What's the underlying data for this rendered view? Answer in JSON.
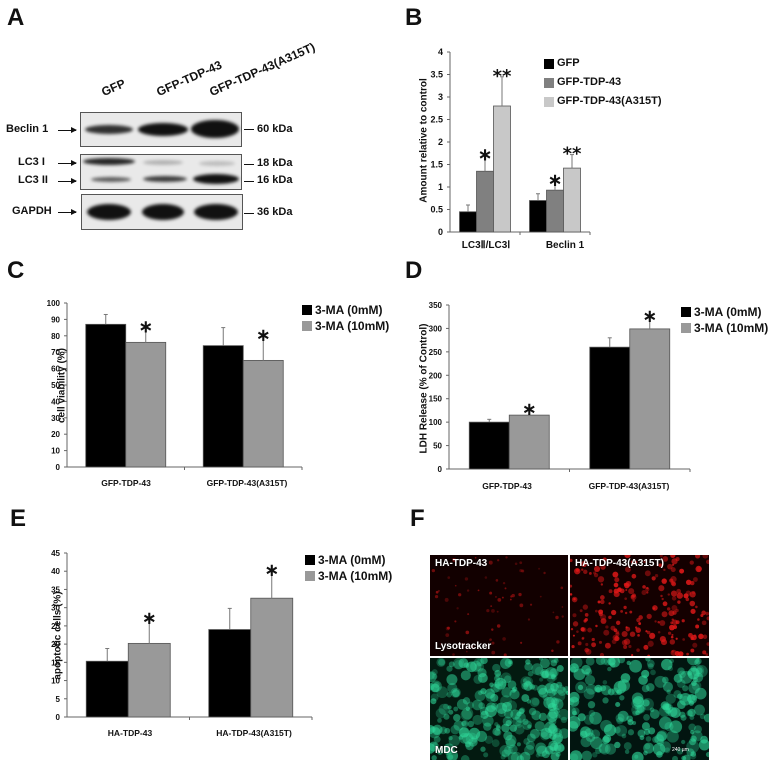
{
  "figure": {
    "panels": [
      "A",
      "B",
      "C",
      "D",
      "E",
      "F"
    ]
  },
  "panel_a": {
    "label": "A",
    "lanes": [
      "GFP",
      "GFP-TDP-43",
      "GFP-TDP-43(A315T)"
    ],
    "rows": [
      {
        "name": "Beclin 1",
        "mw": "60 kDa"
      },
      {
        "name": "LC3 I",
        "mw": "18 kDa"
      },
      {
        "name": "LC3 II",
        "mw": "16 kDa"
      },
      {
        "name": "GAPDH",
        "mw": "36 kDa"
      }
    ],
    "arrow": "→"
  },
  "panel_b": {
    "label": "B"
  },
  "panel_c": {
    "label": "C"
  },
  "panel_d": {
    "label": "D"
  },
  "panel_e": {
    "label": "E"
  },
  "panel_f": {
    "label": "F",
    "col_labels": [
      "HA-TDP-43",
      "HA-TDP-43(A315T)"
    ],
    "row_labels": [
      "Lysotracker",
      "MDC"
    ],
    "scale_bar": "240 µm",
    "colors": {
      "lysotracker": "#e01818",
      "mdc": "#2fd89a"
    }
  },
  "colors": {
    "black_bar": "#000000",
    "dark_gray_bar": "#808080",
    "light_gray_bar": "#c8c8c8",
    "treated_bar": "#999999"
  },
  "chart_data": [
    {
      "panel": "B",
      "type": "bar",
      "title": "",
      "xlabel": "",
      "ylabel": "Amount relative to control",
      "categories": [
        "LC3Ⅱ/LC3Ⅰ",
        "Beclin 1"
      ],
      "series": [
        {
          "name": "GFP",
          "color": "#000000",
          "values": [
            0.45,
            0.7
          ],
          "errors": [
            0.15,
            0.15
          ],
          "sig": [
            "",
            ""
          ]
        },
        {
          "name": "GFP-TDP-43",
          "color": "#808080",
          "values": [
            1.35,
            0.93
          ],
          "errors": [
            0.35,
            0.2
          ],
          "sig": [
            "*",
            "*"
          ]
        },
        {
          "name": "GFP-TDP-43(A315T)",
          "color": "#c8c8c8",
          "values": [
            2.8,
            1.42
          ],
          "errors": [
            0.65,
            0.3
          ],
          "sig": [
            "**",
            "**"
          ]
        }
      ],
      "yticks": [
        "0",
        "0.5",
        "1",
        "1.5",
        "2",
        "2.5",
        "3",
        "3.5",
        "4"
      ],
      "ylim": [
        0,
        4
      ],
      "grid": false,
      "legend_position": "upper right"
    },
    {
      "panel": "C",
      "type": "bar",
      "title": "",
      "xlabel": "",
      "ylabel": "cell viability (%)",
      "categories": [
        "GFP-TDP-43",
        "GFP-TDP-43(A315T)"
      ],
      "series": [
        {
          "name": "3-MA (0mM)",
          "color": "#000000",
          "values": [
            87,
            74
          ],
          "errors": [
            6,
            11
          ],
          "sig": [
            "",
            ""
          ]
        },
        {
          "name": "3-MA (10mM)",
          "color": "#999999",
          "values": [
            76,
            65
          ],
          "errors": [
            9,
            15
          ],
          "sig": [
            "*",
            "*"
          ]
        }
      ],
      "yticks": [
        "0",
        "10",
        "20",
        "30",
        "40",
        "50",
        "60",
        "70",
        "80",
        "90",
        "100"
      ],
      "ylim": [
        0,
        100
      ],
      "grid": false,
      "legend_position": "right"
    },
    {
      "panel": "D",
      "type": "bar",
      "title": "",
      "xlabel": "",
      "ylabel": "LDH Release (% of Control)",
      "categories": [
        "GFP-TDP-43",
        "GFP-TDP-43(A315T)"
      ],
      "series": [
        {
          "name": "3-MA (0mM)",
          "color": "#000000",
          "values": [
            100,
            260
          ],
          "errors": [
            6,
            20
          ],
          "sig": [
            "",
            ""
          ]
        },
        {
          "name": "3-MA (10mM)",
          "color": "#999999",
          "values": [
            115,
            299
          ],
          "errors": [
            11,
            25
          ],
          "sig": [
            "*",
            "*"
          ]
        }
      ],
      "yticks": [
        "0",
        "50",
        "100",
        "150",
        "200",
        "250",
        "300",
        "350"
      ],
      "ylim": [
        0,
        350
      ],
      "grid": false,
      "legend_position": "right"
    },
    {
      "panel": "E",
      "type": "bar",
      "title": "",
      "xlabel": "",
      "ylabel": "apoptotic cells (%)",
      "categories": [
        "HA-TDP-43",
        "HA-TDP-43(A315T)"
      ],
      "series": [
        {
          "name": "3-MA (0mM)",
          "color": "#000000",
          "values": [
            15.3,
            24
          ],
          "errors": [
            3.5,
            5.8
          ],
          "sig": [
            "",
            ""
          ]
        },
        {
          "name": "3-MA (10mM)",
          "color": "#999999",
          "values": [
            20.2,
            32.6
          ],
          "errors": [
            6.7,
            7.5
          ],
          "sig": [
            "*",
            "*"
          ]
        }
      ],
      "yticks": [
        "0",
        "5",
        "10",
        "15",
        "20",
        "25",
        "30",
        "35",
        "40",
        "45"
      ],
      "ylim": [
        0,
        45
      ],
      "grid": false,
      "legend_position": "right"
    }
  ]
}
